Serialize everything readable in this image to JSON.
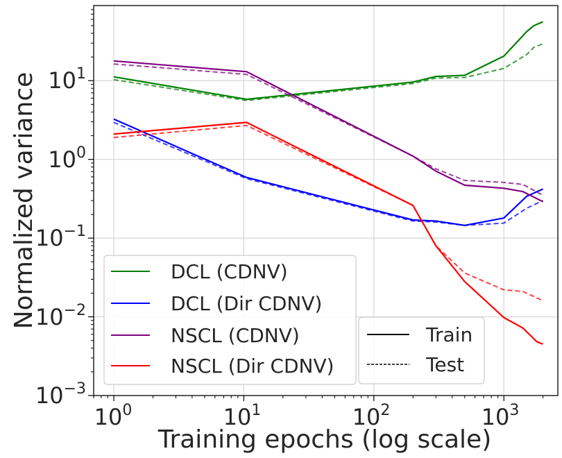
{
  "chart_data": {
    "type": "line",
    "title": "",
    "xlabel": "Training epochs (log scale)",
    "ylabel": "Normalized variance",
    "xscale": "log",
    "yscale": "log",
    "xlim": [
      0.7,
      2600
    ],
    "ylim": [
      0.001,
      90
    ],
    "grid": true,
    "x_ticks": [
      {
        "base": "10",
        "exp": "0",
        "value": 1
      },
      {
        "base": "10",
        "exp": "1",
        "value": 10
      },
      {
        "base": "10",
        "exp": "2",
        "value": 100
      },
      {
        "base": "10",
        "exp": "3",
        "value": 1000
      }
    ],
    "y_ticks": [
      {
        "base": "10",
        "exp": "1",
        "value": 10
      },
      {
        "base": "10",
        "exp": "0",
        "value": 1
      },
      {
        "base": "10",
        "exp": "−1",
        "value": 0.1
      },
      {
        "base": "10",
        "exp": "−2",
        "value": 0.01
      },
      {
        "base": "10",
        "exp": "−3",
        "value": 0.001
      }
    ],
    "series": [
      {
        "name": "DCL (CDNV)",
        "color": "#008000",
        "train": [
          [
            1,
            11.2
          ],
          [
            10.5,
            5.8
          ],
          [
            200,
            9.6
          ],
          [
            300,
            11.3
          ],
          [
            500,
            11.7
          ],
          [
            1000,
            20.5
          ],
          [
            1500,
            42
          ],
          [
            1700,
            50
          ],
          [
            2000,
            56
          ]
        ],
        "test": [
          [
            1,
            10.3
          ],
          [
            10.5,
            5.6
          ],
          [
            200,
            9.2
          ],
          [
            300,
            10.8
          ],
          [
            500,
            11.0
          ],
          [
            1000,
            14.3
          ],
          [
            1500,
            21.5
          ],
          [
            1700,
            26.5
          ],
          [
            2000,
            29.5
          ]
        ]
      },
      {
        "name": "DCL (Dir CDNV)",
        "color": "#0000ff",
        "train": [
          [
            1,
            3.25
          ],
          [
            10.5,
            0.59
          ],
          [
            200,
            0.17
          ],
          [
            300,
            0.165
          ],
          [
            500,
            0.145
          ],
          [
            1000,
            0.18
          ],
          [
            1500,
            0.34
          ],
          [
            2000,
            0.42
          ]
        ],
        "test": [
          [
            1,
            2.95
          ],
          [
            10.5,
            0.57
          ],
          [
            200,
            0.165
          ],
          [
            300,
            0.16
          ],
          [
            500,
            0.145
          ],
          [
            1000,
            0.155
          ],
          [
            1500,
            0.24
          ],
          [
            2000,
            0.3
          ]
        ]
      },
      {
        "name": "NSCL (CDNV)",
        "color": "#800080",
        "train": [
          [
            1,
            17.8
          ],
          [
            10.5,
            13.0
          ],
          [
            200,
            1.1
          ],
          [
            300,
            0.71
          ],
          [
            500,
            0.47
          ],
          [
            1000,
            0.43
          ],
          [
            1400,
            0.39
          ],
          [
            2000,
            0.29
          ]
        ],
        "test": [
          [
            1,
            16.3
          ],
          [
            10.5,
            12.0
          ],
          [
            200,
            1.1
          ],
          [
            300,
            0.76
          ],
          [
            500,
            0.54
          ],
          [
            1000,
            0.51
          ],
          [
            1400,
            0.48
          ],
          [
            2000,
            0.35
          ]
        ]
      },
      {
        "name": "NSCL (Dir CDNV)",
        "color": "#ff0000",
        "train": [
          [
            1,
            2.1
          ],
          [
            10.5,
            2.95
          ],
          [
            200,
            0.26
          ],
          [
            300,
            0.08
          ],
          [
            500,
            0.028
          ],
          [
            1000,
            0.0098
          ],
          [
            1400,
            0.0072
          ],
          [
            1800,
            0.0048
          ],
          [
            2000,
            0.0045
          ]
        ],
        "test": [
          [
            1,
            1.9
          ],
          [
            10.5,
            2.7
          ],
          [
            200,
            0.26
          ],
          [
            300,
            0.08
          ],
          [
            500,
            0.036
          ],
          [
            1000,
            0.022
          ],
          [
            1400,
            0.021
          ],
          [
            2000,
            0.016
          ]
        ]
      }
    ],
    "legend_series": {
      "location": "lower-left",
      "entries": [
        {
          "label": "DCL (CDNV)",
          "color": "#008000"
        },
        {
          "label": "DCL (Dir CDNV)",
          "color": "#0000ff"
        },
        {
          "label": "NSCL (CDNV)",
          "color": "#800080"
        },
        {
          "label": "NSCL (Dir CDNV)",
          "color": "#ff0000"
        }
      ]
    },
    "legend_style": {
      "location": "lower-center",
      "entries": [
        {
          "label": "Train",
          "dash": "solid"
        },
        {
          "label": "Test",
          "dash": "dashed"
        }
      ]
    }
  }
}
